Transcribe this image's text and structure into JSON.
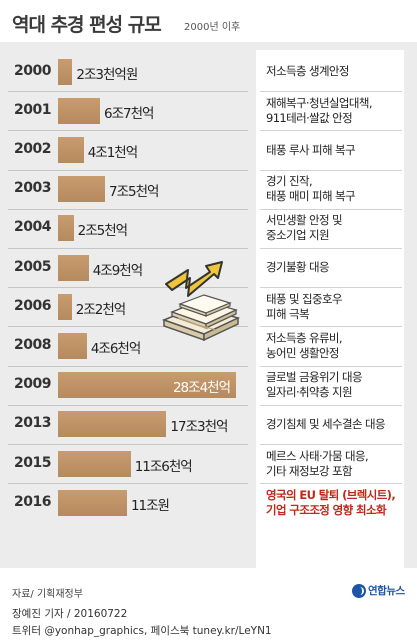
{
  "header": {
    "title": "역대 추경 편성 규모",
    "subtitle": "2000년 이후"
  },
  "chart_data": {
    "type": "bar",
    "title": "역대 추경 편성 규모",
    "subtitle": "2000년 이후",
    "unit": "천억원",
    "categories": [
      "2000",
      "2001",
      "2002",
      "2003",
      "2004",
      "2005",
      "2006",
      "2008",
      "2009",
      "2013",
      "2015",
      "2016"
    ],
    "values": [
      23,
      67,
      41,
      75,
      25,
      49,
      22,
      46,
      284,
      173,
      116,
      110
    ],
    "value_labels": [
      "2조3천억원",
      "6조7천억",
      "4조1천억",
      "7조5천억",
      "2조5천억",
      "4조9천억",
      "2조2천억",
      "4조6천억",
      "28조4천억",
      "17조3천억",
      "11조6천억",
      "11조원"
    ],
    "xlim": [
      0,
      284
    ],
    "orientation": "horizontal"
  },
  "reasons": [
    [
      "저소득층 생계안정"
    ],
    [
      "재해복구·청년실업대책,",
      "911테러·쌀값 안정"
    ],
    [
      "태풍 루사 피해 복구"
    ],
    [
      "경기 진작,",
      "태풍 매미 피해 복구"
    ],
    [
      "서민생활 안정 및",
      "중소기업 지원"
    ],
    [
      "경기불황 대응"
    ],
    [
      "태풍 및 집중호우",
      "피해 극복"
    ],
    [
      "저소득층 유류비,",
      "농어민 생활안정"
    ],
    [
      "글로벌 금융위기 대응",
      "일자리·취약층 지원"
    ],
    [
      "경기침체 및 세수결손 대응"
    ],
    [
      "메르스 사태·가뭄 대응,",
      "기타 재정보강 포함"
    ],
    [
      "영국의 EU 탈퇴 (브렉시트),",
      "기업 구조조정 영향 최소화"
    ]
  ],
  "highlight_index": 11,
  "colors": {
    "bar": "#b58a5f",
    "panel": "#ececec",
    "highlight_text": "#c0281c",
    "logo": "#1d55a8"
  },
  "footer": {
    "source": "자료/ 기획재정부",
    "credit_line1": "장예진 기자 / 20160722",
    "credit_line2": "트위터 @yonhap_graphics, 페이스북 tuney.kr/LeYN1",
    "logo_text": "연합뉴스",
    "logo_icon": "yonhap-logo-icon"
  }
}
